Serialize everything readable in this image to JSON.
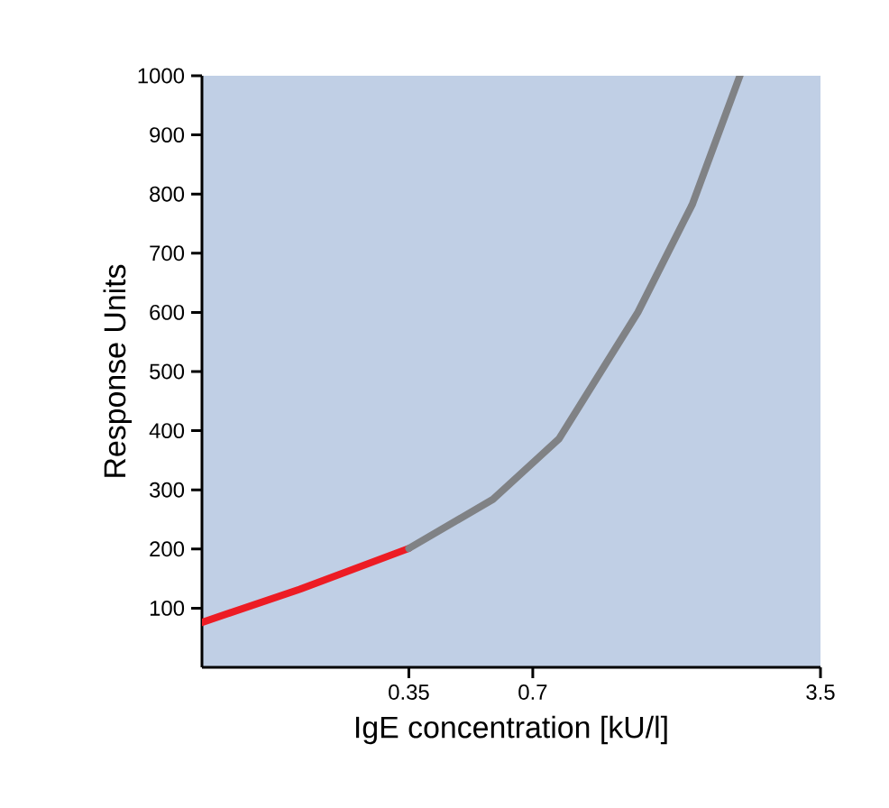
{
  "chart_data": {
    "type": "line",
    "xlabel": "IgE concentration [kU/l]",
    "ylabel": "Response Units",
    "log": "x",
    "xlim": [
      0.11,
      3.5
    ],
    "ylim": [
      0,
      1000
    ],
    "xticks": [
      0.35,
      0.7,
      3.5
    ],
    "yticks": [
      100,
      200,
      300,
      400,
      500,
      600,
      700,
      800,
      900,
      1000
    ],
    "marker": "none",
    "line_style": "solid",
    "series": [
      {
        "color": "#ed1c24",
        "x": [
          0.11,
          0.19,
          0.35
        ],
        "values": [
          76,
          132,
          201
        ]
      },
      {
        "color": "#808285",
        "x": [
          0.35,
          0.56,
          0.81,
          1.26,
          1.71,
          2.23
        ],
        "values": [
          201,
          284,
          386,
          600,
          783,
          1000
        ]
      }
    ]
  }
}
